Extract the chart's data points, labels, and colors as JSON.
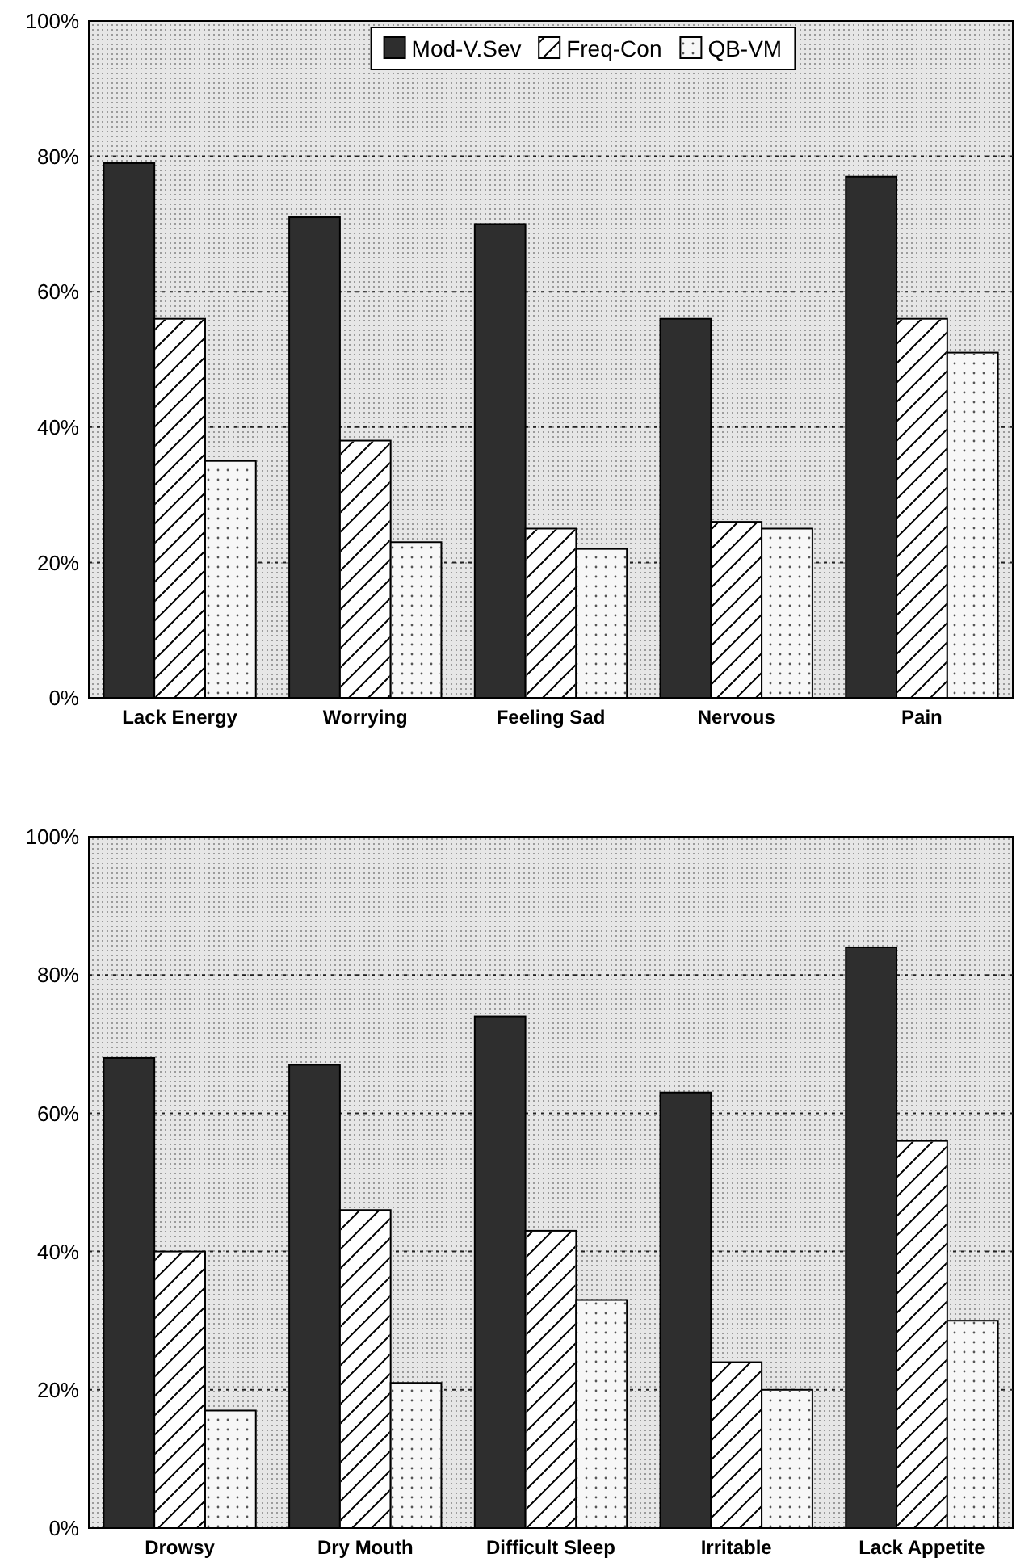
{
  "chart_data": [
    {
      "type": "bar",
      "categories": [
        "Lack Energy",
        "Worrying",
        "Feeling Sad",
        "Nervous",
        "Pain"
      ],
      "series": [
        {
          "name": "Mod-V.Sev",
          "color": "#2e2e2e",
          "values": [
            79,
            71,
            70,
            56,
            77
          ]
        },
        {
          "name": "Freq-Con",
          "color": "#ffffff",
          "values": [
            56,
            38,
            25,
            26,
            56
          ]
        },
        {
          "name": "QB-VM",
          "color": "#f7f7f7",
          "values": [
            35,
            23,
            22,
            25,
            51
          ]
        }
      ],
      "ylim": [
        0,
        100
      ],
      "yticks": [
        {
          "value": 0,
          "label": "0%"
        },
        {
          "value": 20,
          "label": "20%"
        },
        {
          "value": 40,
          "label": "40%"
        },
        {
          "value": 60,
          "label": "60%"
        },
        {
          "value": 80,
          "label": "80%"
        },
        {
          "value": 100,
          "label": "100%"
        }
      ],
      "grid": "y",
      "legend": "top"
    },
    {
      "type": "bar",
      "categories": [
        "Drowsy",
        "Dry Mouth",
        "Difficult Sleep",
        "Irritable",
        "Lack Appetite"
      ],
      "series": [
        {
          "color": "#2e2e2e",
          "values": [
            68,
            67,
            74,
            63,
            84
          ]
        },
        {
          "color": "#ffffff",
          "values": [
            40,
            46,
            43,
            24,
            56
          ]
        },
        {
          "color": "#f7f7f7",
          "values": [
            17,
            21,
            33,
            20,
            30
          ]
        }
      ],
      "ylim": [
        0,
        100
      ],
      "yticks": [
        {
          "value": 0,
          "label": "0%"
        },
        {
          "value": 20,
          "label": "20%"
        },
        {
          "value": 40,
          "label": "40%"
        },
        {
          "value": 60,
          "label": "60%"
        },
        {
          "value": 80,
          "label": "80%"
        },
        {
          "value": 100,
          "label": "100%"
        }
      ],
      "grid": "y",
      "legend": false
    }
  ]
}
